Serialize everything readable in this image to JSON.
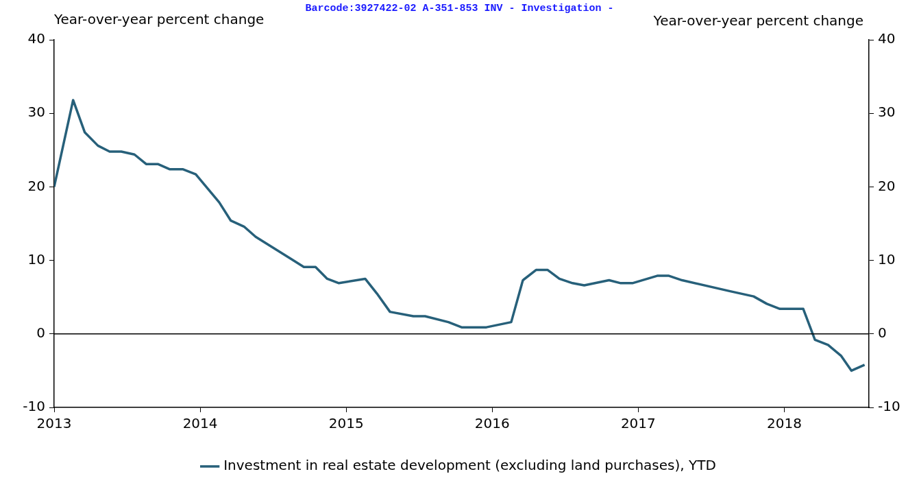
{
  "chart_data": {
    "type": "line",
    "xlabel": null,
    "ylabel": "Year-over-year percent change",
    "y2label": "Year-over-year percent change",
    "annotations": [
      "Barcode:3927422-02 A-351-853 INV - Investigation  -"
    ],
    "x": [
      2013.0,
      2013.13,
      2013.21,
      2013.3,
      2013.38,
      2013.46,
      2013.55,
      2013.63,
      2013.71,
      2013.79,
      2013.88,
      2013.97,
      2014.13,
      2014.21,
      2014.3,
      2014.38,
      2014.63,
      2014.71,
      2014.79,
      2014.87,
      2014.95,
      2015.13,
      2015.21,
      2015.3,
      2015.46,
      2015.54,
      2015.7,
      2015.79,
      2015.96,
      2016.13,
      2016.21,
      2016.3,
      2016.38,
      2016.46,
      2016.55,
      2016.63,
      2016.8,
      2016.88,
      2016.96,
      2017.13,
      2017.21,
      2017.3,
      2017.63,
      2017.79,
      2017.88,
      2017.97,
      2018.13,
      2018.21,
      2018.3,
      2018.39,
      2018.46,
      2018.55
    ],
    "series": [
      {
        "name": "Investment in real estate development (excluding land purchases), YTD",
        "color": "#27607a",
        "values": [
          20.0,
          31.8,
          27.4,
          25.6,
          24.8,
          24.8,
          24.4,
          23.1,
          23.1,
          22.4,
          22.4,
          21.7,
          17.9,
          15.4,
          14.6,
          13.2,
          10.1,
          9.1,
          9.1,
          7.5,
          6.9,
          7.5,
          5.5,
          3.0,
          2.4,
          2.4,
          1.6,
          0.9,
          0.9,
          1.6,
          7.3,
          8.7,
          8.7,
          7.5,
          6.9,
          6.6,
          7.3,
          6.9,
          6.9,
          7.9,
          7.9,
          7.3,
          5.8,
          5.1,
          4.1,
          3.4,
          3.4,
          -0.8,
          -1.5,
          -3.0,
          -5.0,
          -4.2
        ]
      }
    ],
    "xlim": [
      2013,
      2018.58
    ],
    "xticks": [
      2013,
      2014,
      2015,
      2016,
      2017,
      2018
    ],
    "ylim": [
      -10,
      40
    ],
    "yticks": [
      -10,
      0,
      10,
      20,
      30,
      40
    ],
    "y2lim": [
      -10,
      40
    ],
    "y2ticks": [
      -10,
      0,
      10,
      20,
      30,
      40
    ],
    "ref_lines": [
      {
        "axis": "y",
        "value": 0,
        "color": "#000000",
        "line_style": "solid"
      }
    ],
    "grid": false,
    "legend": "bottom",
    "marker": "none",
    "line_style": "solid"
  }
}
